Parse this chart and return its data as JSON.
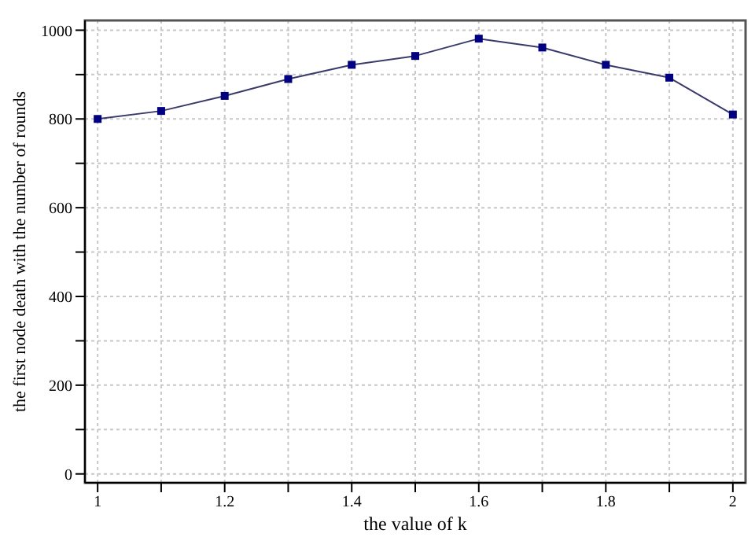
{
  "chart_data": {
    "type": "line",
    "xlabel": "the value of k",
    "ylabel": "the first node death with the number of rounds",
    "x": [
      1,
      1.1,
      1.2,
      1.3,
      1.4,
      1.5,
      1.6,
      1.7,
      1.8,
      1.9,
      2
    ],
    "series": [
      {
        "color": "#000080",
        "values": [
          800,
          818,
          852,
          890,
          922,
          942,
          981,
          961,
          922,
          893,
          810
        ]
      }
    ],
    "xlim": [
      0.98,
      2.02
    ],
    "ylim": [
      -20,
      1022
    ],
    "xticks": [
      1,
      {
        "value": 1.1,
        "label": null
      },
      1.2,
      {
        "value": 1.3,
        "label": null
      },
      1.4,
      {
        "value": 1.5,
        "label": null
      },
      1.6,
      {
        "value": 1.7,
        "label": null
      },
      1.8,
      {
        "value": 1.9,
        "label": null
      },
      2
    ],
    "yticks": [
      0,
      {
        "value": 100,
        "label": null
      },
      200,
      {
        "value": 300,
        "label": null
      },
      400,
      {
        "value": 500,
        "label": null
      },
      600,
      {
        "value": 700,
        "label": null
      },
      800,
      {
        "value": 900,
        "label": null
      },
      1000
    ],
    "grid": true,
    "marker": "square",
    "line_style": "solid"
  }
}
